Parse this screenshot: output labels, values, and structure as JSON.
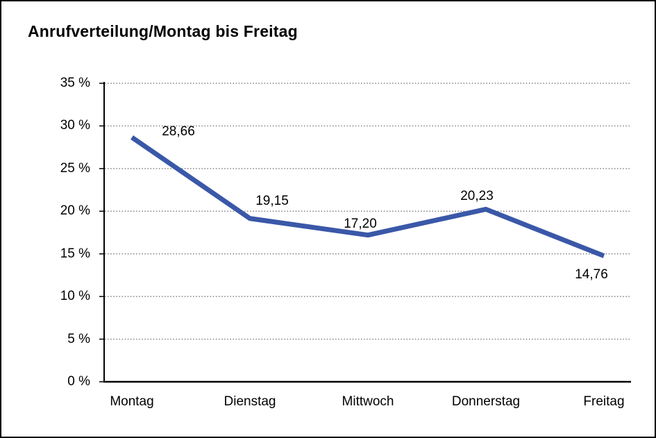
{
  "chart_data": {
    "type": "line",
    "title": "Anrufverteilung/Montag bis Freitag",
    "categories": [
      "Montag",
      "Dienstag",
      "Mittwoch",
      "Donnerstag",
      "Freitag"
    ],
    "series": [
      {
        "name": "Anrufverteilung",
        "values": [
          28.66,
          19.15,
          17.2,
          20.23,
          14.76
        ]
      }
    ],
    "value_labels": [
      "28,66",
      "19,15",
      "17,20",
      "20,23",
      "14,76"
    ],
    "y_tick_labels": [
      "0 %",
      "5 %",
      "10 %",
      "15 %",
      "20 %",
      "25 %",
      "30 %",
      "35 %"
    ],
    "ylim": [
      0,
      35
    ],
    "y_step": 5,
    "xlabel": "",
    "ylabel": "",
    "legend": "none",
    "grid": "horizontal-dotted",
    "colors": {
      "line": "#3a58a8",
      "axis": "#000000",
      "gridline": "#666666",
      "text": "#000000",
      "background": "#ffffff",
      "frame_border": "#000000"
    }
  }
}
